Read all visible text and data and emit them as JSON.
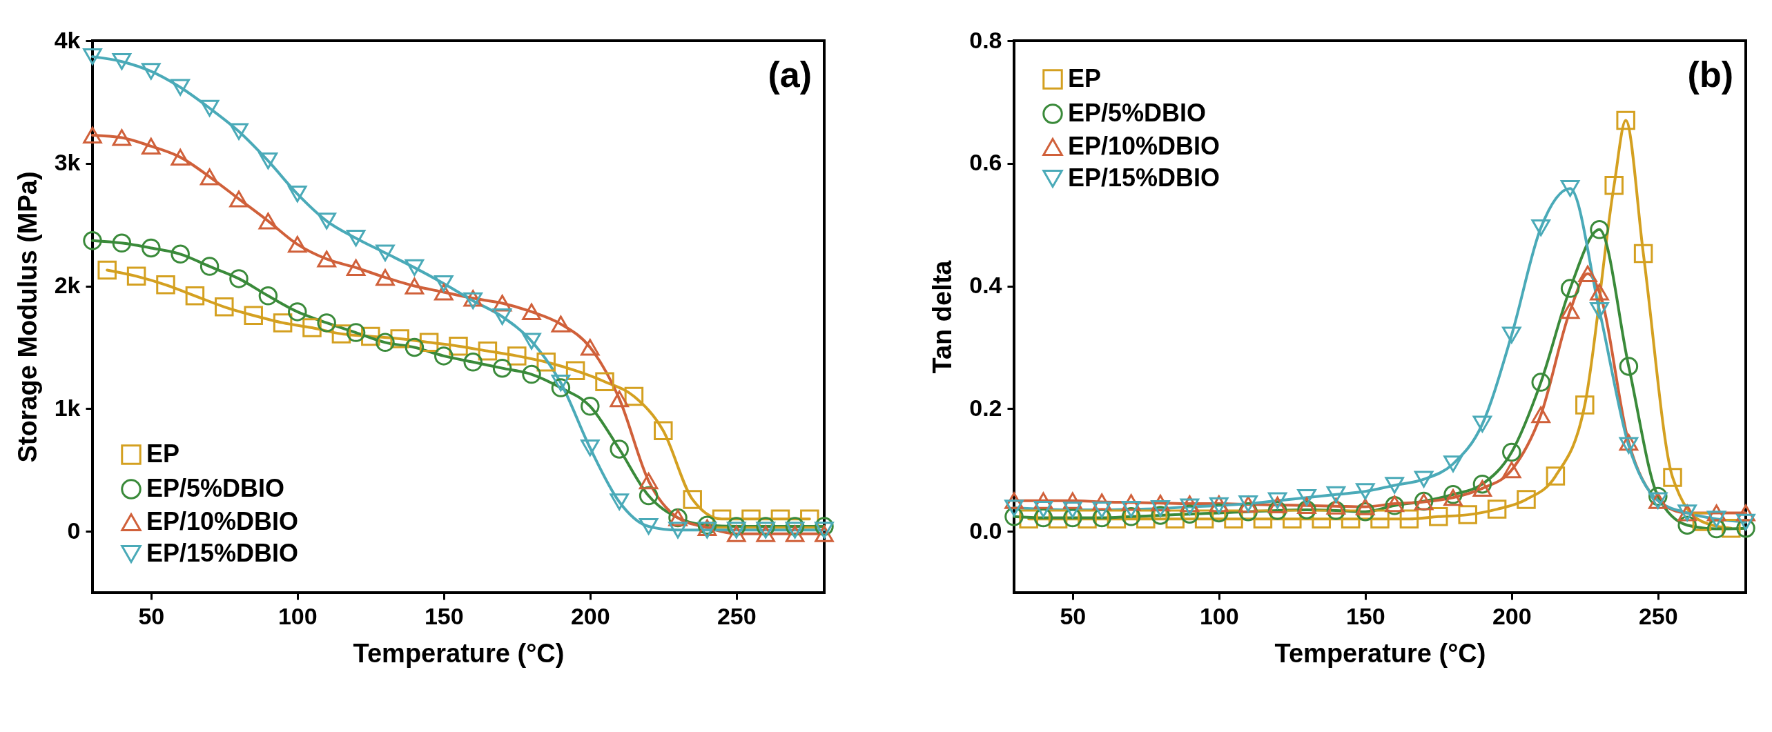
{
  "chart_data": [
    {
      "type": "line",
      "xlabel": "Temperature (°C)",
      "ylabel": "Storage Modulus (MPa)",
      "annotations": [
        "(a)"
      ],
      "legend": "bottom left",
      "grid": false,
      "xlim": [
        30,
        280
      ],
      "xticks": [
        50,
        100,
        150,
        200,
        250
      ],
      "ylim": [
        -500,
        4000
      ],
      "yticks": [
        0,
        {
          "value": 1000,
          "label": "1k"
        },
        {
          "value": 2000,
          "label": "2k"
        },
        {
          "value": 3000,
          "label": "3k"
        },
        {
          "value": 4000,
          "label": "4k"
        }
      ],
      "series": [
        {
          "name": "EP",
          "color": "#d4a020",
          "marker": "square",
          "x": [
            35,
            45,
            55,
            65,
            75,
            85,
            95,
            105,
            115,
            125,
            135,
            145,
            155,
            165,
            175,
            185,
            195,
            205,
            215,
            225,
            235,
            245,
            255,
            265,
            275
          ],
          "values": [
            2130,
            2080,
            2010,
            1920,
            1830,
            1760,
            1700,
            1660,
            1610,
            1590,
            1570,
            1540,
            1510,
            1470,
            1430,
            1380,
            1310,
            1220,
            1100,
            820,
            260,
            100,
            100,
            100,
            100
          ]
        },
        {
          "name": "EP/5%DBIO",
          "color": "#3a8a3a",
          "marker": "circle",
          "x": [
            30,
            40,
            50,
            60,
            70,
            80,
            90,
            100,
            110,
            120,
            130,
            140,
            150,
            160,
            170,
            180,
            190,
            200,
            210,
            220,
            230,
            240,
            250,
            260,
            270,
            280
          ],
          "values": [
            2370,
            2350,
            2310,
            2260,
            2160,
            2060,
            1920,
            1790,
            1700,
            1620,
            1540,
            1500,
            1430,
            1380,
            1330,
            1280,
            1170,
            1020,
            670,
            290,
            110,
            50,
            40,
            40,
            40,
            40
          ]
        },
        {
          "name": "EP/10%DBIO",
          "color": "#d0603a",
          "marker": "triangle-up",
          "x": [
            30,
            40,
            50,
            60,
            70,
            80,
            90,
            100,
            110,
            120,
            130,
            140,
            150,
            160,
            170,
            180,
            190,
            200,
            210,
            220,
            230,
            240,
            250,
            260,
            270,
            280
          ],
          "values": [
            3230,
            3210,
            3140,
            3050,
            2890,
            2710,
            2530,
            2340,
            2220,
            2150,
            2070,
            2000,
            1950,
            1900,
            1860,
            1790,
            1690,
            1500,
            1080,
            410,
            110,
            30,
            -20,
            -20,
            -20,
            -20
          ]
        },
        {
          "name": "EP/15%DBIO",
          "color": "#4aaab8",
          "marker": "triangle-down",
          "x": [
            30,
            40,
            50,
            60,
            70,
            80,
            90,
            100,
            110,
            120,
            130,
            140,
            150,
            160,
            170,
            180,
            190,
            200,
            210,
            220,
            230,
            240,
            250,
            260,
            270,
            280
          ],
          "values": [
            3870,
            3830,
            3750,
            3620,
            3450,
            3260,
            3020,
            2750,
            2530,
            2390,
            2270,
            2150,
            2020,
            1880,
            1750,
            1550,
            1210,
            680,
            240,
            40,
            10,
            10,
            10,
            10,
            10,
            10
          ]
        }
      ]
    },
    {
      "type": "line",
      "xlabel": "Temperature (°C)",
      "ylabel": "Tan delta",
      "annotations": [
        "(b)"
      ],
      "legend": "top left",
      "grid": false,
      "xlim": [
        30,
        280
      ],
      "xticks": [
        50,
        100,
        150,
        200,
        250
      ],
      "ylim": [
        -0.1,
        0.8
      ],
      "yticks": [
        {
          "value": 0,
          "label": "0.0"
        },
        0.2,
        0.4,
        0.6,
        0.8
      ],
      "series": [
        {
          "name": "EP",
          "color": "#d4a020",
          "marker": "square",
          "x": [
            35,
            45,
            55,
            65,
            75,
            85,
            95,
            105,
            115,
            125,
            135,
            145,
            155,
            165,
            175,
            185,
            195,
            205,
            215,
            225,
            235,
            239,
            245,
            255,
            265,
            275
          ],
          "values": [
            0.02,
            0.02,
            0.02,
            0.02,
            0.02,
            0.02,
            0.02,
            0.02,
            0.02,
            0.02,
            0.02,
            0.02,
            0.02,
            0.02,
            0.024,
            0.027,
            0.036,
            0.052,
            0.09,
            0.206,
            0.564,
            0.67,
            0.453,
            0.088,
            0.016,
            0.005
          ]
        },
        {
          "name": "EP/5%DBIO",
          "color": "#3a8a3a",
          "marker": "circle",
          "x": [
            30,
            40,
            50,
            60,
            70,
            80,
            90,
            100,
            110,
            120,
            130,
            140,
            150,
            160,
            170,
            180,
            190,
            200,
            210,
            220,
            230,
            240,
            250,
            260,
            270,
            280
          ],
          "values": [
            0.024,
            0.022,
            0.022,
            0.022,
            0.024,
            0.026,
            0.028,
            0.03,
            0.032,
            0.034,
            0.035,
            0.034,
            0.032,
            0.042,
            0.049,
            0.06,
            0.077,
            0.129,
            0.243,
            0.396,
            0.492,
            0.269,
            0.057,
            0.01,
            0.004,
            0.005
          ]
        },
        {
          "name": "EP/10%DBIO",
          "color": "#d0603a",
          "marker": "triangle-up",
          "x": [
            30,
            40,
            50,
            60,
            70,
            80,
            90,
            100,
            110,
            120,
            130,
            140,
            150,
            160,
            170,
            180,
            190,
            200,
            210,
            220,
            226,
            230,
            240,
            250,
            260,
            270,
            280
          ],
          "values": [
            0.05,
            0.05,
            0.05,
            0.048,
            0.047,
            0.046,
            0.045,
            0.045,
            0.044,
            0.043,
            0.042,
            0.041,
            0.04,
            0.045,
            0.048,
            0.055,
            0.07,
            0.1,
            0.19,
            0.36,
            0.42,
            0.39,
            0.145,
            0.05,
            0.03,
            0.03,
            0.03
          ]
        },
        {
          "name": "EP/15%DBIO",
          "color": "#4aaab8",
          "marker": "triangle-down",
          "x": [
            30,
            40,
            50,
            60,
            70,
            80,
            90,
            100,
            110,
            120,
            130,
            140,
            150,
            160,
            170,
            180,
            190,
            200,
            210,
            220,
            230,
            240,
            250,
            260,
            270,
            280
          ],
          "values": [
            0.038,
            0.036,
            0.035,
            0.035,
            0.036,
            0.037,
            0.04,
            0.042,
            0.045,
            0.05,
            0.055,
            0.06,
            0.065,
            0.075,
            0.085,
            0.11,
            0.175,
            0.32,
            0.495,
            0.559,
            0.36,
            0.14,
            0.05,
            0.03,
            0.02,
            0.015
          ]
        }
      ]
    }
  ]
}
